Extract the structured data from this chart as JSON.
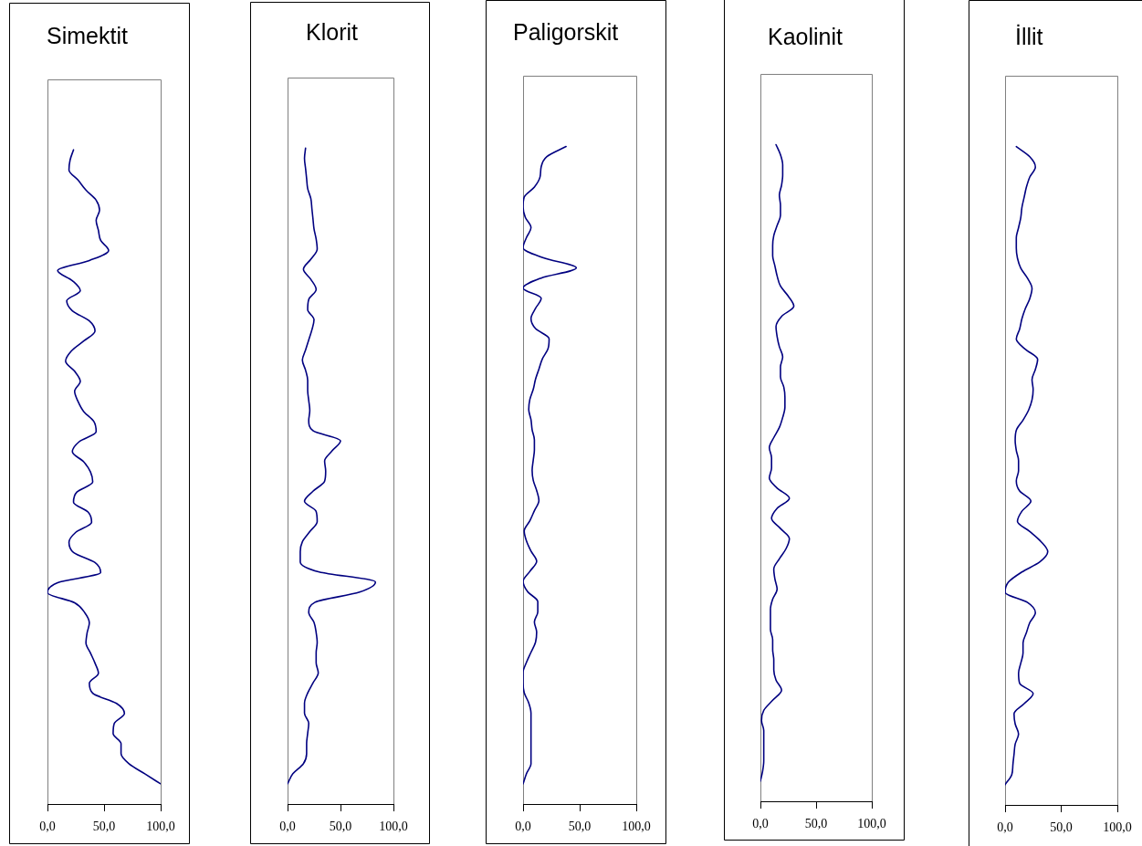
{
  "chart_data": [
    {
      "type": "line",
      "title": "Simektit",
      "orientation": "horizontal",
      "color": "#000080",
      "xlim": [
        0,
        100
      ],
      "xticks": [
        {
          "value": 0,
          "label": "0,0"
        },
        {
          "value": 50,
          "label": "50,0"
        },
        {
          "value": 100,
          "label": "100,0"
        }
      ],
      "tick_labels": "x",
      "marker": "none",
      "categories": [
        null,
        null,
        null,
        null,
        null,
        null,
        null,
        null,
        null,
        null,
        null,
        null,
        null,
        null,
        null,
        null,
        null,
        null,
        null,
        null,
        null,
        null,
        null,
        null,
        null,
        null,
        null,
        null,
        null,
        null,
        null,
        null,
        null,
        null,
        null,
        null,
        null,
        null,
        null,
        null,
        null,
        null,
        null,
        null,
        null,
        null,
        null,
        null,
        null,
        null,
        null,
        null,
        null,
        null,
        null,
        null,
        null,
        null,
        null,
        null,
        null,
        null,
        null,
        null,
        null,
        null,
        null,
        null,
        null,
        null,
        null,
        null,
        null
      ],
      "values": [
        null,
        null,
        null,
        null,
        null,
        null,
        null,
        23,
        20,
        19,
        27,
        34,
        43,
        46,
        43,
        45,
        47,
        54,
        37,
        9,
        22,
        29,
        17,
        22,
        37,
        42,
        32,
        21,
        16,
        24,
        29,
        24,
        27,
        32,
        41,
        43,
        28,
        22,
        32,
        38,
        40,
        26,
        23,
        36,
        39,
        25,
        19,
        23,
        42,
        47,
        9,
        0,
        24,
        33,
        37,
        35,
        34,
        38,
        42,
        45,
        37,
        40,
        61,
        68,
        59,
        58,
        65,
        65,
        72,
        86,
        100,
        null,
        null
      ]
    },
    {
      "type": "line",
      "title": "Klorit",
      "orientation": "horizontal",
      "color": "#000080",
      "xlim": [
        0,
        100
      ],
      "xticks": [
        {
          "value": 0,
          "label": "0,0"
        },
        {
          "value": 50,
          "label": "50,0"
        },
        {
          "value": 100,
          "label": "100,0"
        }
      ],
      "tick_labels": "x",
      "marker": "none",
      "categories": [
        null,
        null,
        null,
        null,
        null,
        null,
        null,
        null,
        null,
        null,
        null,
        null,
        null,
        null,
        null,
        null,
        null,
        null,
        null,
        null,
        null,
        null,
        null,
        null,
        null,
        null,
        null,
        null,
        null,
        null,
        null,
        null,
        null,
        null,
        null,
        null,
        null,
        null,
        null,
        null,
        null,
        null,
        null,
        null,
        null,
        null,
        null,
        null,
        null,
        null,
        null,
        null,
        null,
        null,
        null,
        null,
        null,
        null,
        null,
        null,
        null,
        null,
        null,
        null,
        null,
        null,
        null,
        null,
        null,
        null,
        null,
        null,
        null
      ],
      "values": [
        null,
        null,
        null,
        null,
        null,
        null,
        null,
        17,
        16,
        17,
        18,
        19,
        22,
        23,
        24,
        25,
        27,
        28,
        22,
        15,
        22,
        27,
        20,
        19,
        25,
        23,
        20,
        17,
        14,
        17,
        19,
        19,
        20,
        21,
        20,
        24,
        50,
        42,
        35,
        36,
        35,
        24,
        16,
        27,
        28,
        21,
        14,
        12,
        12,
        30,
        83,
        68,
        26,
        20,
        25,
        27,
        28,
        27,
        27,
        29,
        24,
        19,
        16,
        16,
        20,
        19,
        18,
        18,
        15,
        5,
        0,
        null,
        null
      ]
    },
    {
      "type": "line",
      "title": "Paligorskit",
      "orientation": "horizontal",
      "color": "#000080",
      "xlim": [
        0,
        100
      ],
      "xticks": [
        {
          "value": 0,
          "label": "0,0"
        },
        {
          "value": 50,
          "label": "50,0"
        },
        {
          "value": 100,
          "label": "100,0"
        }
      ],
      "tick_labels": "x",
      "marker": "none",
      "categories": [
        null,
        null,
        null,
        null,
        null,
        null,
        null,
        null,
        null,
        null,
        null,
        null,
        null,
        null,
        null,
        null,
        null,
        null,
        null,
        null,
        null,
        null,
        null,
        null,
        null,
        null,
        null,
        null,
        null,
        null,
        null,
        null,
        null,
        null,
        null,
        null,
        null,
        null,
        null,
        null,
        null,
        null,
        null,
        null,
        null,
        null,
        null,
        null,
        null,
        null,
        null,
        null,
        null,
        null,
        null,
        null,
        null,
        null,
        null,
        null,
        null,
        null,
        null,
        null,
        null,
        null,
        null,
        null,
        null,
        null,
        null,
        null,
        null
      ],
      "values": [
        null,
        null,
        null,
        null,
        null,
        null,
        null,
        38,
        21,
        16,
        15,
        10,
        1,
        0,
        2,
        7,
        3,
        0,
        18,
        47,
        16,
        0,
        16,
        11,
        7,
        11,
        23,
        22,
        17,
        14,
        11,
        9,
        6,
        5,
        7,
        8,
        10,
        10,
        9,
        8,
        9,
        12,
        14,
        10,
        6,
        1,
        3,
        7,
        12,
        6,
        0,
        4,
        13,
        13,
        10,
        12,
        11,
        7,
        3,
        0,
        0,
        1,
        5,
        7,
        7,
        7,
        7,
        7,
        7,
        3,
        0,
        null,
        null
      ]
    },
    {
      "type": "line",
      "title": "Kaolinit",
      "orientation": "horizontal",
      "color": "#000080",
      "xlim": [
        0,
        100
      ],
      "xticks": [
        {
          "value": 0,
          "label": "0,0"
        },
        {
          "value": 50,
          "label": "50,0"
        },
        {
          "value": 100,
          "label": "100,0"
        }
      ],
      "tick_labels": "x",
      "marker": "none",
      "categories": [
        null,
        null,
        null,
        null,
        null,
        null,
        null,
        null,
        null,
        null,
        null,
        null,
        null,
        null,
        null,
        null,
        null,
        null,
        null,
        null,
        null,
        null,
        null,
        null,
        null,
        null,
        null,
        null,
        null,
        null,
        null,
        null,
        null,
        null,
        null,
        null,
        null,
        null,
        null,
        null,
        null,
        null,
        null,
        null,
        null,
        null,
        null,
        null,
        null,
        null,
        null,
        null,
        null,
        null,
        null,
        null,
        null,
        null,
        null,
        null,
        null,
        null,
        null,
        null,
        null,
        null,
        null,
        null,
        null,
        null,
        null,
        null,
        null
      ],
      "values": [
        null,
        null,
        null,
        null,
        null,
        null,
        null,
        14,
        18,
        20,
        20,
        19,
        17,
        18,
        18,
        15,
        12,
        11,
        11,
        13,
        15,
        18,
        25,
        30,
        19,
        14,
        15,
        17,
        20,
        18,
        18,
        21,
        22,
        22,
        20,
        17,
        12,
        8,
        10,
        10,
        8,
        15,
        26,
        15,
        10,
        18,
        26,
        23,
        17,
        12,
        13,
        15,
        11,
        9,
        9,
        9,
        11,
        11,
        12,
        12,
        14,
        19,
        11,
        3,
        1,
        3,
        3,
        3,
        3,
        2,
        0,
        null,
        null
      ]
    },
    {
      "type": "line",
      "title": "İllit",
      "orientation": "horizontal",
      "color": "#000080",
      "xlim": [
        0,
        100
      ],
      "xticks": [
        {
          "value": 0,
          "label": "0,0"
        },
        {
          "value": 50,
          "label": "50,0"
        },
        {
          "value": 100,
          "label": "100,0"
        }
      ],
      "tick_labels": "x",
      "marker": "none",
      "categories": [
        null,
        null,
        null,
        null,
        null,
        null,
        null,
        null,
        null,
        null,
        null,
        null,
        null,
        null,
        null,
        null,
        null,
        null,
        null,
        null,
        null,
        null,
        null,
        null,
        null,
        null,
        null,
        null,
        null,
        null,
        null,
        null,
        null,
        null,
        null,
        null,
        null,
        null,
        null,
        null,
        null,
        null,
        null,
        null,
        null,
        null,
        null,
        null,
        null,
        null,
        null,
        null,
        null,
        null,
        null,
        null,
        null,
        null,
        null,
        null,
        null,
        null,
        null,
        null,
        null,
        null,
        null,
        null,
        null,
        null,
        null,
        null,
        null
      ],
      "values": [
        null,
        null,
        null,
        null,
        null,
        null,
        null,
        10,
        22,
        27,
        22,
        19,
        17,
        15,
        14,
        12,
        10,
        10,
        11,
        14,
        20,
        24,
        22,
        18,
        15,
        13,
        10,
        18,
        29,
        27,
        24,
        25,
        24,
        21,
        16,
        10,
        9,
        10,
        12,
        12,
        10,
        13,
        23,
        15,
        11,
        22,
        32,
        38,
        31,
        15,
        3,
        0,
        20,
        27,
        22,
        19,
        16,
        16,
        14,
        12,
        13,
        25,
        17,
        8,
        9,
        12,
        9,
        8,
        7,
        6,
        0,
        null,
        null
      ]
    }
  ]
}
